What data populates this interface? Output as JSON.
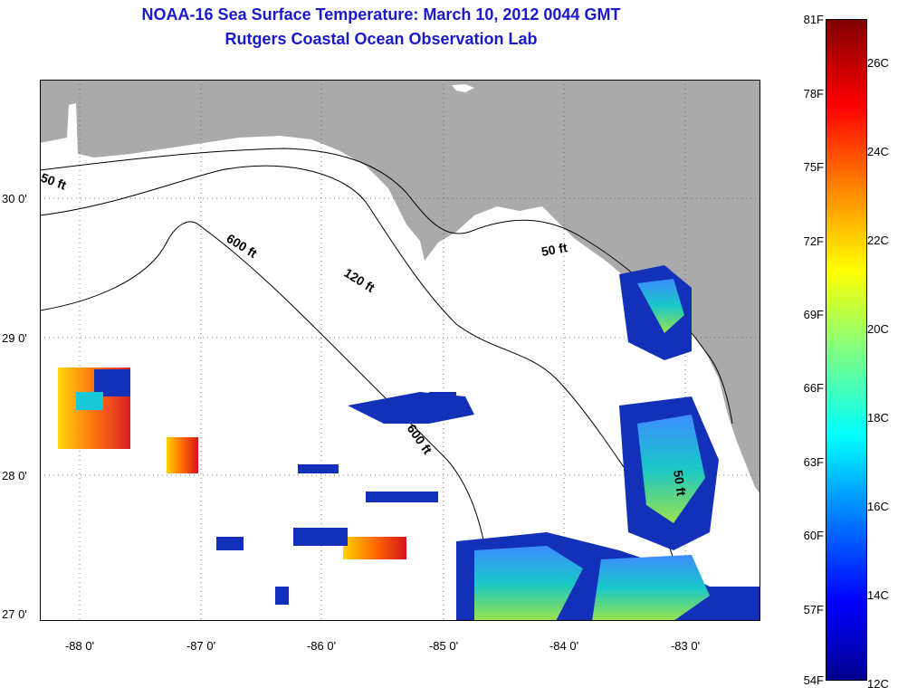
{
  "title": {
    "line1": "NOAA-16 Sea Surface Temperature:  March 10, 2012 0044 GMT",
    "line2": "Rutgers Coastal Ocean Observation Lab"
  },
  "map": {
    "latitude_labels": [
      "30 0'",
      "29 0'",
      "28 0'",
      "27 0'"
    ],
    "longitude_labels": [
      "-88 0'",
      "-87 0'",
      "-86 0'",
      "-85 0'",
      "-84 0'",
      "-83 0'"
    ],
    "contour_labels": [
      "50 ft",
      "50 ft",
      "600 ft",
      "120 ft",
      "600 ft",
      "50 ft"
    ],
    "colors": {
      "land": "#aaaaaa",
      "ocean_no_data": "#ffffff",
      "title": "#1a1acc"
    }
  },
  "colorbar": {
    "fahrenheit_labels": [
      "81F",
      "78F",
      "75F",
      "72F",
      "69F",
      "66F",
      "63F",
      "60F",
      "57F",
      "54F"
    ],
    "celsius_labels": [
      "26C",
      "24C",
      "22C",
      "20C",
      "18C",
      "16C",
      "14C",
      "12C"
    ],
    "range_f": [
      54,
      81
    ],
    "range_c": [
      12,
      27
    ]
  }
}
